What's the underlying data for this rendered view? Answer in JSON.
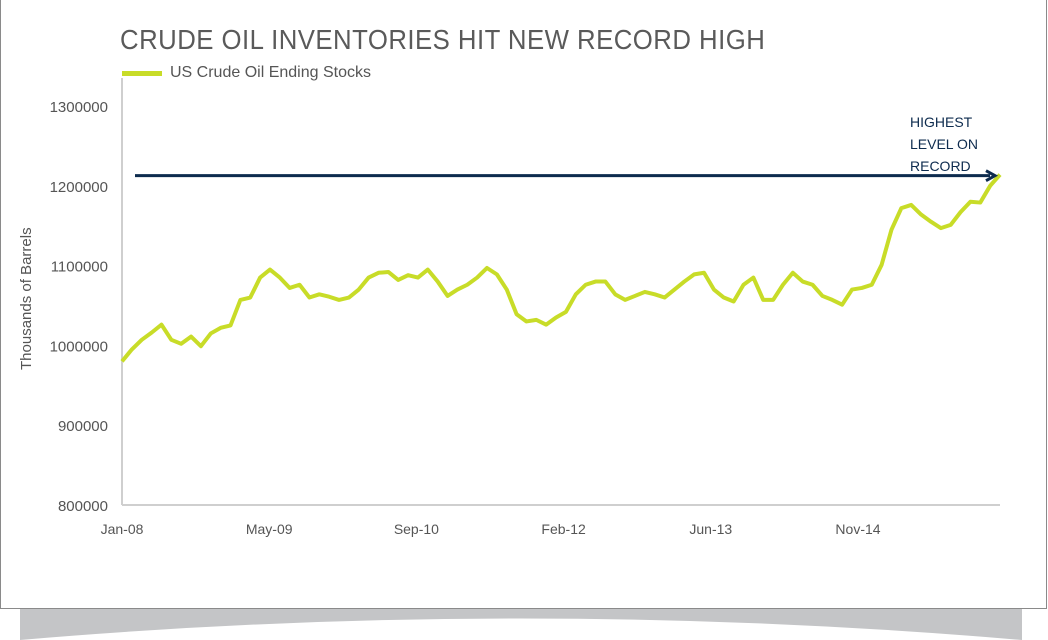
{
  "chart_data": {
    "type": "line",
    "title": "CRUDE OIL INVENTORIES HIT NEW RECORD HIGH",
    "ylabel": "Thousands of Barrels",
    "xlabel": "",
    "ylim": [
      800000,
      1300000
    ],
    "yticks": [
      "800000",
      "900000",
      "1000000",
      "1100000",
      "1200000",
      "1300000"
    ],
    "xticks": [
      "Jan-08",
      "May-09",
      "Sep-10",
      "Feb-12",
      "Jun-13",
      "Nov-14"
    ],
    "x_range": [
      "2008-01",
      "2015-12"
    ],
    "grid": false,
    "legend_position": "top-left",
    "series": [
      {
        "name": "US Crude Oil Ending Stocks",
        "color": "#c8dc28",
        "values": [
          980000,
          995000,
          1007000,
          1016000,
          1026000,
          1007000,
          1002000,
          1011000,
          999000,
          1015000,
          1022000,
          1025000,
          1057000,
          1060000,
          1085000,
          1095000,
          1085000,
          1072000,
          1076000,
          1060000,
          1064000,
          1061000,
          1057000,
          1060000,
          1070000,
          1085000,
          1091000,
          1092000,
          1082000,
          1088000,
          1085000,
          1095000,
          1080000,
          1062000,
          1070000,
          1076000,
          1085000,
          1097000,
          1089000,
          1070000,
          1039000,
          1030000,
          1032000,
          1026000,
          1035000,
          1042000,
          1064000,
          1076000,
          1080000,
          1080000,
          1064000,
          1057000,
          1062000,
          1067000,
          1064000,
          1060000,
          1070000,
          1080000,
          1089000,
          1091000,
          1070000,
          1060000,
          1055000,
          1076000,
          1085000,
          1057000,
          1057000,
          1076000,
          1091000,
          1080000,
          1076000,
          1062000,
          1057000,
          1051000,
          1070000,
          1072000,
          1076000,
          1101000,
          1145000,
          1172000,
          1176000,
          1164000,
          1155000,
          1147000,
          1151000,
          1167000,
          1180000,
          1179000,
          1200000,
          1214000
        ]
      }
    ],
    "annotations": [
      {
        "text": "HIGHEST LEVEL ON RECORD",
        "value": 1214000,
        "arrow_color": "#0d2b4e"
      }
    ]
  }
}
